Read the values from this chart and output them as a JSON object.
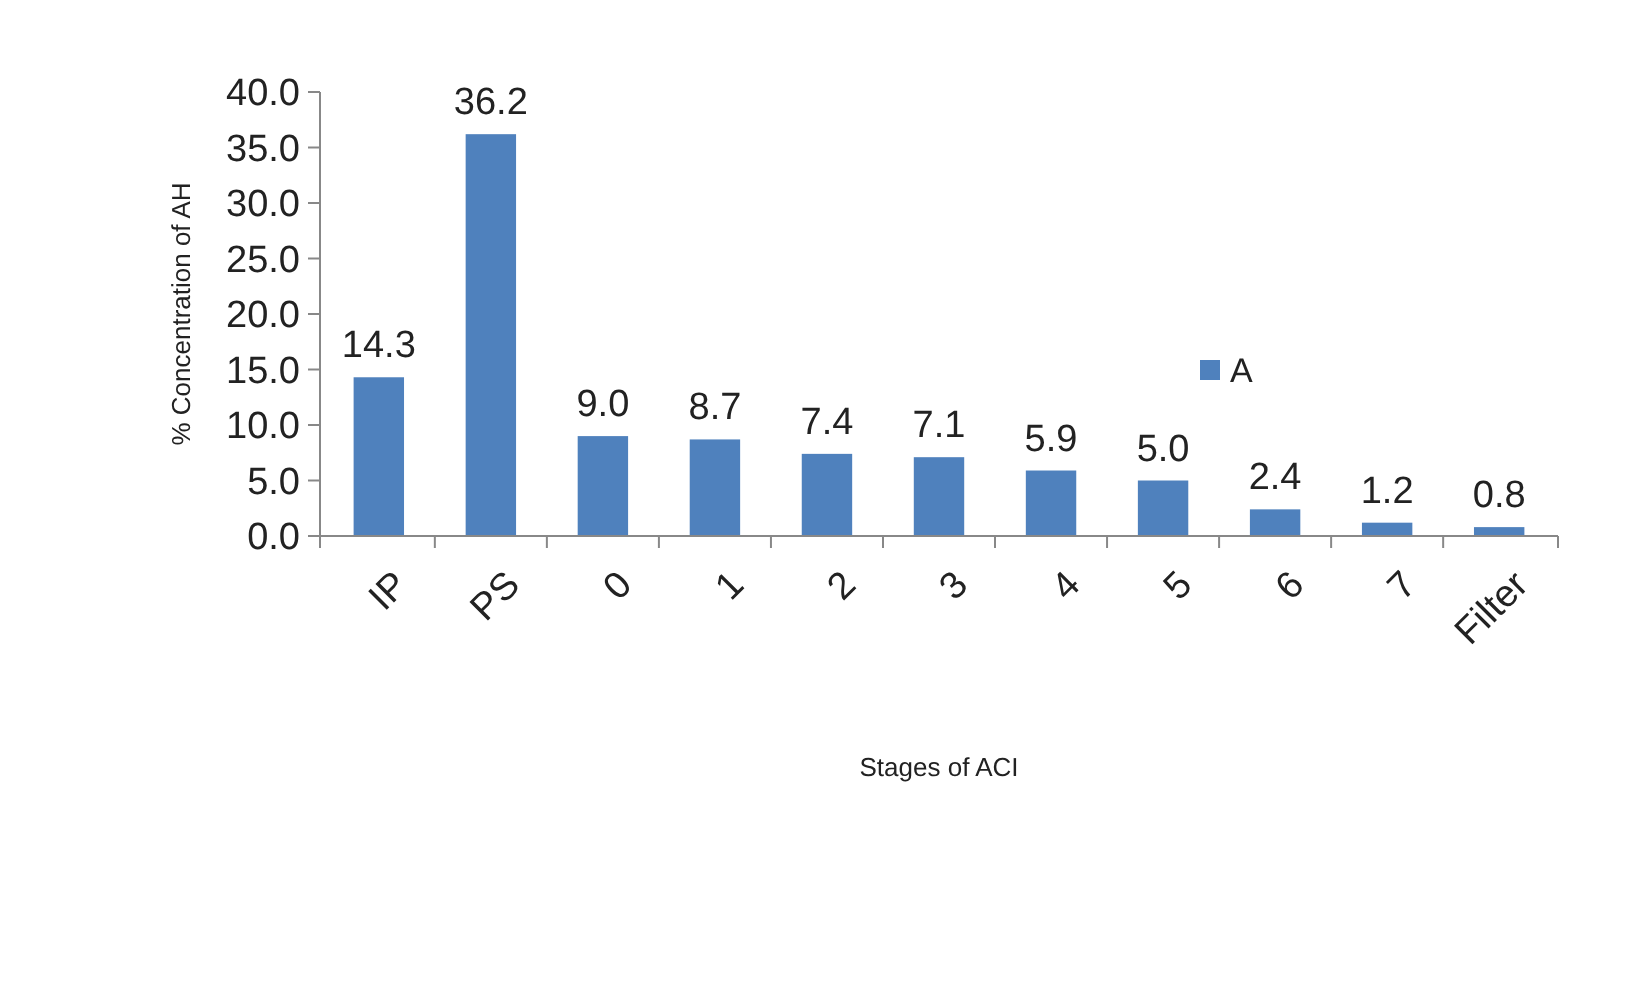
{
  "chart_data": {
    "type": "bar",
    "xlabel": "Stages of ACI",
    "ylabel": "% Concentration of AH",
    "categories": [
      "IP",
      "PS",
      "0",
      "1",
      "2",
      "3",
      "4",
      "5",
      "6",
      "7",
      "Filter"
    ],
    "series": [
      {
        "name": "A",
        "color": "#4f81bd",
        "values": [
          14.3,
          36.2,
          9.0,
          8.7,
          7.4,
          7.1,
          5.9,
          5.0,
          2.4,
          1.2,
          0.8
        ],
        "value_labels": [
          "14.3",
          "36.2",
          "9.0",
          "8.7",
          "7.4",
          "7.1",
          "5.9",
          "5.0",
          "2.4",
          "1.2",
          "0.8"
        ]
      }
    ],
    "ylim": [
      0,
      40
    ],
    "yticks": [
      {
        "value": 0,
        "label": "0.0"
      },
      {
        "value": 5,
        "label": "5.0"
      },
      {
        "value": 10,
        "label": "10.0"
      },
      {
        "value": 15,
        "label": "15.0"
      },
      {
        "value": 20,
        "label": "20.0"
      },
      {
        "value": 25,
        "label": "25.0"
      },
      {
        "value": 30,
        "label": "30.0"
      },
      {
        "value": 35,
        "label": "35.0"
      },
      {
        "value": 40,
        "label": "40.0"
      }
    ],
    "grid": false,
    "legend": "center"
  }
}
